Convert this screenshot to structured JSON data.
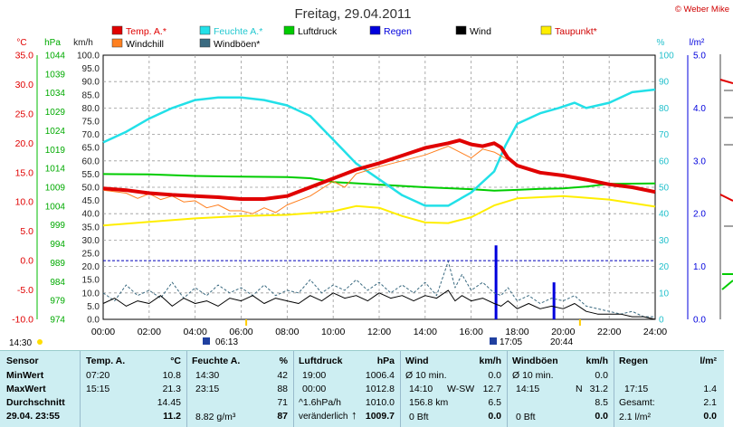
{
  "header": {
    "title": "Freitag, 29.04.2011",
    "credit": "© Weber Mike"
  },
  "legend": [
    {
      "label": "Temp. A.*",
      "color": "#e00000"
    },
    {
      "label": "Feuchte A.*",
      "color": "#22e0e8"
    },
    {
      "label": "Luftdruck",
      "color": "#00cc00"
    },
    {
      "label": "Regen",
      "color": "#0000dd"
    },
    {
      "label": "Wind",
      "color": "#000000"
    },
    {
      "label": "Taupunkt*",
      "color": "#ffee00"
    },
    {
      "label": "Windchill",
      "color": "#ff8020"
    },
    {
      "label": "Windböen*",
      "color": "#3a6a80"
    }
  ],
  "axis_units": {
    "temp": "°C",
    "pressure": "hPa",
    "wind": "km/h",
    "humidity": "%",
    "rain": "l/m²"
  },
  "chart_data": {
    "type": "line",
    "x_range": [
      "00:00",
      "24:00"
    ],
    "x_ticks": [
      "00:00",
      "02:00",
      "04:00",
      "06:00",
      "08:00",
      "10:00",
      "12:00",
      "14:00",
      "16:00",
      "18:00",
      "20:00",
      "22:00",
      "24:00"
    ],
    "axes": {
      "temp": {
        "range": [
          -10,
          35
        ],
        "ticks": [
          "35.0",
          "30.0",
          "25.0",
          "20.0",
          "15.0",
          "10.0",
          "5.0",
          "0.0",
          "-5.0",
          "-10.0"
        ]
      },
      "pressure": {
        "range": [
          974,
          1044
        ],
        "ticks": [
          "1044",
          "1039",
          "1034",
          "1029",
          "1024",
          "1019",
          "1014",
          "1009",
          "1004",
          "999",
          "994",
          "989",
          "984",
          "979",
          "974"
        ]
      },
      "wind": {
        "range": [
          0,
          100
        ],
        "ticks": [
          "100.0",
          "95.0",
          "90.0",
          "85.0",
          "80.0",
          "75.0",
          "70.0",
          "65.0",
          "60.0",
          "55.0",
          "50.0",
          "45.0",
          "40.0",
          "35.0",
          "30.0",
          "25.0",
          "20.0",
          "15.0",
          "10.0",
          "5.0",
          "0.0"
        ]
      },
      "humidity": {
        "range": [
          0,
          100
        ],
        "ticks": [
          "100",
          "90",
          "80",
          "70",
          "60",
          "50",
          "40",
          "30",
          "20",
          "10",
          "0"
        ]
      },
      "rain": {
        "range": [
          0,
          5
        ],
        "ticks": [
          "5.0",
          "4.0",
          "3.0",
          "2.0",
          "1.0",
          "0.0"
        ]
      }
    },
    "series": [
      {
        "name": "Temp. A.*",
        "axis": "temp",
        "color": "#e00000",
        "width": 4,
        "points": [
          [
            0,
            12.3
          ],
          [
            1,
            12.0
          ],
          [
            2,
            11.5
          ],
          [
            3,
            11.2
          ],
          [
            4,
            11.0
          ],
          [
            5,
            10.8
          ],
          [
            6,
            10.5
          ],
          [
            7,
            10.5
          ],
          [
            8,
            11.0
          ],
          [
            9,
            12.5
          ],
          [
            10,
            14.0
          ],
          [
            11,
            15.5
          ],
          [
            12,
            16.6
          ],
          [
            13,
            17.9
          ],
          [
            14,
            19.2
          ],
          [
            15,
            20.0
          ],
          [
            15.5,
            20.5
          ],
          [
            16,
            19.8
          ],
          [
            16.5,
            19.5
          ],
          [
            17,
            20.0
          ],
          [
            17.3,
            19.3
          ],
          [
            17.6,
            17.5
          ],
          [
            18,
            16.2
          ],
          [
            19,
            15.0
          ],
          [
            20,
            14.5
          ],
          [
            21,
            13.8
          ],
          [
            22,
            13.0
          ],
          [
            23,
            12.5
          ],
          [
            24,
            11.7
          ]
        ]
      },
      {
        "name": "Windchill",
        "axis": "temp",
        "color": "#ff8020",
        "width": 1,
        "points": [
          [
            0,
            12.0
          ],
          [
            1,
            11.5
          ],
          [
            1.5,
            10.6
          ],
          [
            2,
            11.4
          ],
          [
            2.5,
            10.4
          ],
          [
            3,
            11.0
          ],
          [
            3.5,
            10.0
          ],
          [
            4,
            10.2
          ],
          [
            4.5,
            9.0
          ],
          [
            5,
            9.5
          ],
          [
            5.5,
            8.5
          ],
          [
            6,
            8.5
          ],
          [
            6.5,
            8.0
          ],
          [
            7,
            9.0
          ],
          [
            7.5,
            8.2
          ],
          [
            8,
            9.5
          ],
          [
            9,
            11.0
          ],
          [
            10,
            13.5
          ],
          [
            10.5,
            12.5
          ],
          [
            11,
            14.8
          ],
          [
            12,
            16.0
          ],
          [
            13,
            17.0
          ],
          [
            14,
            18.0
          ],
          [
            15,
            19.5
          ],
          [
            15.5,
            18.5
          ],
          [
            16,
            17.5
          ],
          [
            16.5,
            19.0
          ],
          [
            17,
            18.5
          ],
          [
            17.6,
            17.2
          ],
          [
            18,
            16.2
          ],
          [
            19,
            15.0
          ],
          [
            20,
            14.5
          ],
          [
            21,
            13.8
          ],
          [
            22,
            13.0
          ],
          [
            23,
            12.5
          ],
          [
            24,
            11.7
          ]
        ]
      },
      {
        "name": "Feuchte A.*",
        "axis": "humidity",
        "color": "#22e0e8",
        "width": 2.5,
        "points": [
          [
            0,
            67
          ],
          [
            1,
            71
          ],
          [
            2,
            76
          ],
          [
            3,
            80
          ],
          [
            4,
            83
          ],
          [
            5,
            84
          ],
          [
            6,
            84
          ],
          [
            7,
            83
          ],
          [
            8,
            81
          ],
          [
            9,
            77
          ],
          [
            10,
            68
          ],
          [
            11,
            59
          ],
          [
            12,
            53
          ],
          [
            13,
            47
          ],
          [
            14,
            43
          ],
          [
            15,
            43
          ],
          [
            16,
            48
          ],
          [
            17,
            56
          ],
          [
            17.5,
            66
          ],
          [
            18,
            74
          ],
          [
            19,
            78
          ],
          [
            19.8,
            80
          ],
          [
            20.5,
            82
          ],
          [
            21,
            80
          ],
          [
            22,
            82
          ],
          [
            23,
            86
          ],
          [
            24,
            87
          ]
        ]
      },
      {
        "name": "Luftdruck",
        "axis": "pressure",
        "color": "#00cc00",
        "width": 2,
        "points": [
          [
            0,
            1012.5
          ],
          [
            2,
            1012.4
          ],
          [
            4,
            1012.0
          ],
          [
            6,
            1011.8
          ],
          [
            8,
            1011.7
          ],
          [
            9,
            1011.4
          ],
          [
            10,
            1010.4
          ],
          [
            12,
            1009.7
          ],
          [
            14,
            1009.0
          ],
          [
            16,
            1008.5
          ],
          [
            17,
            1008.1
          ],
          [
            18,
            1008.3
          ],
          [
            19,
            1008.6
          ],
          [
            20,
            1008.7
          ],
          [
            21,
            1009.2
          ],
          [
            22,
            1009.9
          ],
          [
            24,
            1010.0
          ]
        ]
      },
      {
        "name": "Taupunkt*",
        "axis": "temp",
        "color": "#ffee00",
        "width": 2,
        "points": [
          [
            0,
            6.0
          ],
          [
            2,
            6.6
          ],
          [
            4,
            7.2
          ],
          [
            6,
            7.6
          ],
          [
            8,
            7.8
          ],
          [
            10,
            8.4
          ],
          [
            11,
            9.3
          ],
          [
            12,
            9.0
          ],
          [
            13,
            7.6
          ],
          [
            14,
            6.5
          ],
          [
            15,
            6.4
          ],
          [
            16,
            7.4
          ],
          [
            17,
            9.4
          ],
          [
            18,
            10.6
          ],
          [
            19,
            10.8
          ],
          [
            20,
            11.0
          ],
          [
            22,
            10.4
          ],
          [
            24,
            9.2
          ]
        ]
      },
      {
        "name": "Windböen*",
        "axis": "wind",
        "color": "#3a6a80",
        "width": 1,
        "dash": "3,2",
        "points": [
          [
            0,
            10
          ],
          [
            0.5,
            7
          ],
          [
            1,
            13
          ],
          [
            1.5,
            9
          ],
          [
            2,
            11
          ],
          [
            2.5,
            8
          ],
          [
            3,
            14
          ],
          [
            3.5,
            8
          ],
          [
            4,
            12
          ],
          [
            4.5,
            9
          ],
          [
            5,
            13
          ],
          [
            5.5,
            10
          ],
          [
            6,
            12
          ],
          [
            6.5,
            9
          ],
          [
            7,
            13
          ],
          [
            7.5,
            9
          ],
          [
            8,
            11
          ],
          [
            8.5,
            10
          ],
          [
            9,
            15
          ],
          [
            9.5,
            10
          ],
          [
            10,
            13
          ],
          [
            10.5,
            11
          ],
          [
            11,
            15
          ],
          [
            11.5,
            11
          ],
          [
            12,
            14
          ],
          [
            12.5,
            10
          ],
          [
            13,
            13
          ],
          [
            13.5,
            10
          ],
          [
            14,
            14
          ],
          [
            14.5,
            9
          ],
          [
            15,
            22
          ],
          [
            15.3,
            12
          ],
          [
            15.6,
            17
          ],
          [
            16,
            11
          ],
          [
            16.5,
            14
          ],
          [
            17,
            10
          ],
          [
            17.3,
            9
          ],
          [
            17.6,
            12
          ],
          [
            18,
            7
          ],
          [
            18.5,
            9
          ],
          [
            19,
            6
          ],
          [
            19.5,
            8
          ],
          [
            20,
            7
          ],
          [
            20.5,
            9
          ],
          [
            21,
            5
          ],
          [
            21.5,
            4
          ],
          [
            22,
            3
          ],
          [
            22.5,
            2
          ],
          [
            23,
            3
          ],
          [
            23.5,
            1
          ],
          [
            24,
            1
          ]
        ]
      },
      {
        "name": "Wind",
        "axis": "wind",
        "color": "#000000",
        "width": 1,
        "points": [
          [
            0,
            6
          ],
          [
            0.5,
            8
          ],
          [
            1,
            5
          ],
          [
            1.5,
            7
          ],
          [
            2,
            6
          ],
          [
            2.5,
            9
          ],
          [
            3,
            5
          ],
          [
            3.5,
            8
          ],
          [
            4,
            6
          ],
          [
            4.5,
            7
          ],
          [
            5,
            5
          ],
          [
            5.5,
            8
          ],
          [
            6,
            7
          ],
          [
            6.5,
            9
          ],
          [
            7,
            6
          ],
          [
            7.5,
            8
          ],
          [
            8,
            7
          ],
          [
            8.5,
            6
          ],
          [
            9,
            9
          ],
          [
            9.5,
            7
          ],
          [
            10,
            10
          ],
          [
            10.5,
            8
          ],
          [
            11,
            9
          ],
          [
            11.5,
            7
          ],
          [
            12,
            10
          ],
          [
            12.5,
            8
          ],
          [
            13,
            9
          ],
          [
            13.5,
            7
          ],
          [
            14,
            9
          ],
          [
            14.5,
            8
          ],
          [
            15,
            11
          ],
          [
            15.3,
            7
          ],
          [
            15.6,
            9
          ],
          [
            16,
            7
          ],
          [
            16.5,
            8
          ],
          [
            17,
            6
          ],
          [
            17.3,
            5
          ],
          [
            17.6,
            7
          ],
          [
            18,
            4
          ],
          [
            18.5,
            6
          ],
          [
            19,
            4
          ],
          [
            19.5,
            5
          ],
          [
            20,
            4
          ],
          [
            20.5,
            6
          ],
          [
            21,
            3
          ],
          [
            21.5,
            2
          ],
          [
            22,
            2
          ],
          [
            22.5,
            2
          ],
          [
            23,
            1
          ],
          [
            23.5,
            1
          ],
          [
            24,
            0
          ]
        ]
      }
    ],
    "rain_bars": [
      {
        "x": 17.08,
        "value": 1.4
      },
      {
        "x": 19.6,
        "value": 0.7
      }
    ],
    "freeze_line": {
      "axis": "temp",
      "value": 0
    },
    "markers": {
      "bottom_left_time": "14:30",
      "sunrise": "06:13",
      "rain_time": "17:05",
      "sunset": "20:44"
    }
  },
  "stats": {
    "sensor": {
      "header": "Sensor",
      "rows": [
        "MinWert",
        "MaxWert",
        "Durchschnitt",
        "29.04. 23:55"
      ]
    },
    "temp": {
      "header": "Temp. A.",
      "unit": "°C",
      "min_time": "07:20",
      "min_val": "10.8",
      "max_time": "15:15",
      "max_val": "21.3",
      "avg": "14.45",
      "now": "11.2"
    },
    "humidity": {
      "header": "Feuchte A.",
      "unit": "%",
      "min_time": "14:30",
      "min_val": "42",
      "max_time": "23:15",
      "max_val": "88",
      "avg": "71",
      "abs": "8.82 g/m³",
      "now": "87"
    },
    "pressure": {
      "header": "Luftdruck",
      "unit": "hPa",
      "min_time": "19:00",
      "min_val": "1006.4",
      "max_time": "00:00",
      "max_val": "1012.8",
      "trend_label": "^1.6hPa/h",
      "avg": "1010.0",
      "change_label": "veränderlich",
      "now": "1009.7"
    },
    "wind": {
      "header": "Wind",
      "unit": "km/h",
      "r1_label": "Ø 10 min.",
      "r1_val": "0.0",
      "r2_time": "14:10",
      "r2_dir": "W-SW",
      "r2_val": "12.7",
      "r3_label": "156.8 km",
      "r3_val": "6.5",
      "r4_label": "0 Bft",
      "r4_val": "0.0"
    },
    "gusts": {
      "header": "Windböen",
      "unit": "km/h",
      "r1_label": "Ø 10 min.",
      "r1_val": "0.0",
      "r2_time": "14:15",
      "r2_dir": "N",
      "r2_val": "31.2",
      "r3_val": "8.5",
      "r4_label": "0 Bft",
      "r4_val": "0.0"
    },
    "rain": {
      "header": "Regen",
      "unit": "l/m²",
      "r2_time": "17:15",
      "r2_val": "1.4",
      "r3_label": "Gesamt:",
      "r3_val": "2.1",
      "r4_label": "2.1 l/m²",
      "r4_val": "0.0"
    }
  }
}
